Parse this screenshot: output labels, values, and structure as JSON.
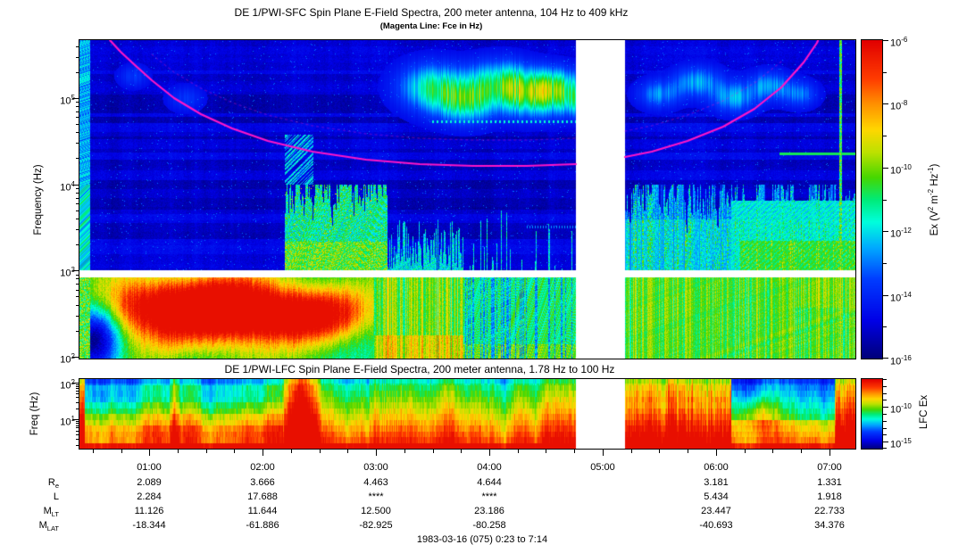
{
  "header": {
    "title": "DE 1/PWI-SFC  Spin Plane E-Field Spectra, 200 meter antenna, 104 Hz to 409 kHz",
    "subtitle": "(Magenta Line: Fce in Hz)",
    "lfc_title": "DE 1/PWI-LFC  Spin Plane E-Field Spectra, 200 meter antenna, 1.78 Hz to 100 Hz"
  },
  "sfc": {
    "ylabel": "Frequency (Hz)",
    "ytick_exps": [
      "5",
      "4",
      "3",
      "2"
    ],
    "colorbar": {
      "label_tokens": [
        {
          "t": "Ex (V"
        },
        {
          "s": "2"
        },
        {
          "t": " m"
        },
        {
          "s": "-2"
        },
        {
          "t": " Hz"
        },
        {
          "s": "-1"
        },
        {
          "t": ")"
        }
      ],
      "tick_exps": [
        "-6",
        "-8",
        "-10",
        "-12",
        "-14",
        "-16"
      ]
    }
  },
  "lfc": {
    "ylabel": "Freq (Hz)",
    "ytick_exps": [
      "2",
      "1"
    ],
    "colorbar": {
      "label": "LFC Ex",
      "tick_exps": [
        "-10",
        "-15"
      ]
    }
  },
  "time_axis": {
    "labels": [
      "01:00",
      "02:00",
      "03:00",
      "04:00",
      "05:00",
      "06:00",
      "07:00"
    ]
  },
  "ephemeris": {
    "row_label_tokens": [
      [
        {
          "t": "R"
        },
        {
          "sub": "e"
        }
      ],
      [
        {
          "t": "L"
        }
      ],
      [
        {
          "t": "M"
        },
        {
          "sub": "LT"
        }
      ],
      [
        {
          "t": "M"
        },
        {
          "sub": "LAT"
        }
      ]
    ],
    "rows": [
      {
        "name": "Re",
        "values": [
          "2.089",
          "3.666",
          "4.463",
          "4.644",
          "",
          "3.181",
          "1.331"
        ]
      },
      {
        "name": "L",
        "values": [
          "2.284",
          "17.688",
          "****",
          "****",
          "",
          "5.434",
          "1.918"
        ]
      },
      {
        "name": "MLT",
        "values": [
          "11.126",
          "11.644",
          "12.500",
          "23.186",
          "",
          "23.447",
          "22.733"
        ]
      },
      {
        "name": "MLAT",
        "values": [
          "-18.344",
          "-61.886",
          "-82.925",
          "-80.258",
          "",
          "-40.693",
          "34.376"
        ]
      }
    ]
  },
  "footer": {
    "date_line": "1983-03-16 (075) 0:23 to 7:14"
  },
  "colors": {
    "magenta_line": "#ff16c8",
    "frame": "#000000",
    "background": "#ffffff",
    "plot_deep_blue": "#0000d4",
    "colormap": "rainbow (dark blue → blue → cyan → green → yellow → orange → red)"
  },
  "chart_data": [
    {
      "type": "heatmap",
      "name": "SFC spectrogram",
      "title": "DE 1/PWI-SFC  Spin Plane E-Field Spectra, 200 meter antenna, 104 Hz to 409 kHz",
      "ylabel": "Frequency (Hz)",
      "y_scale": "log",
      "y_range_hz": [
        104,
        409000
      ],
      "x_range_hours": [
        0.383,
        7.233
      ],
      "x_tick_labels": [
        "01:00",
        "02:00",
        "03:00",
        "04:00",
        "05:00",
        "06:00",
        "07:00"
      ],
      "value_label": "Ex (V^2 m^-2 Hz^-1)",
      "value_range": [
        1e-16,
        1e-06
      ],
      "colormap": "rainbow",
      "data_gap_hours": [
        4.76,
        5.2
      ],
      "white_separator_band_hz": [
        900,
        1100
      ],
      "fce_line_hours_khz": [
        [
          0.65,
          409
        ],
        [
          1.0,
          75
        ],
        [
          1.5,
          39
        ],
        [
          2.0,
          23
        ],
        [
          2.5,
          19
        ],
        [
          3.0,
          17
        ],
        [
          3.5,
          16
        ],
        [
          4.0,
          16
        ],
        [
          4.4,
          17
        ],
        [
          5.2,
          21
        ],
        [
          5.5,
          25
        ],
        [
          6.0,
          42
        ],
        [
          6.5,
          112
        ],
        [
          6.9,
          409
        ]
      ],
      "features": [
        "magenta Fce electron-cyclotron line descends from 409 kHz at 0:40 to ~16 kHz near 3:30-4:30, rises back above 400 kHz by 6:55",
        "intense yellow-orange emission below 1 kHz from 0:25 to about 2:45 (peak ~10^-8)",
        "broadband burst at ~2:20 with green/cyan vertical streaks reaching tens of kHz",
        "patchy green/cyan auroral kilometric emission near 100-300 kHz between 3:30 and 4:45 and after 5:30",
        "dense cyan/green vertical striations below ~20 kHz after the 5:12 data gap",
        "funnel-shaped green hiss wedge in lower right from 5:30 to 7:10",
        "narrow bright cyan vertical spike near 7:05",
        "background deep blue ~10^-15 to 10^-16 with faint horizontal banding"
      ]
    },
    {
      "type": "heatmap",
      "name": "LFC spectrogram",
      "title": "DE 1/PWI-LFC  Spin Plane E-Field Spectra, 200 meter antenna, 1.78 Hz to 100 Hz",
      "ylabel": "Freq (Hz)",
      "y_scale": "log",
      "y_range_hz": [
        1.78,
        100
      ],
      "x_range_hours": [
        0.383,
        7.233
      ],
      "value_label": "LFC Ex",
      "value_range": [
        1e-16,
        1e-06
      ],
      "colormap": "rainbow",
      "data_gap_hours": [
        4.76,
        5.2
      ],
      "features": [
        "intensity increases toward low frequency: cyan/green near 100 Hz grading to orange/red below ~5 Hz",
        "intense red burst across all frequencies near 2:20",
        "red/orange streaky interval from 5:12 to about 5:55 after the data gap",
        "calm green/cyan interval 5:55-7:00 with small yellow patch near 6:15",
        "red column at far left edge and renewed orange/red streaks after 7:05"
      ]
    },
    {
      "type": "table",
      "name": "orbit ephemeris",
      "columns": [
        "01:00",
        "02:00",
        "03:00",
        "04:00",
        "05:00",
        "06:00",
        "07:00"
      ],
      "rows": [
        {
          "label": "Re",
          "values": [
            "2.089",
            "3.666",
            "4.463",
            "4.644",
            "",
            "3.181",
            "1.331"
          ]
        },
        {
          "label": "L",
          "values": [
            "2.284",
            "17.688",
            "****",
            "****",
            "",
            "5.434",
            "1.918"
          ]
        },
        {
          "label": "MLT",
          "values": [
            "11.126",
            "11.644",
            "12.500",
            "23.186",
            "",
            "23.447",
            "22.733"
          ]
        },
        {
          "label": "MLAT",
          "values": [
            "-18.344",
            "-61.886",
            "-82.925",
            "-80.258",
            "",
            "-40.693",
            "34.376"
          ]
        }
      ],
      "caption": "1983-03-16 (075) 0:23 to 7:14"
    }
  ]
}
